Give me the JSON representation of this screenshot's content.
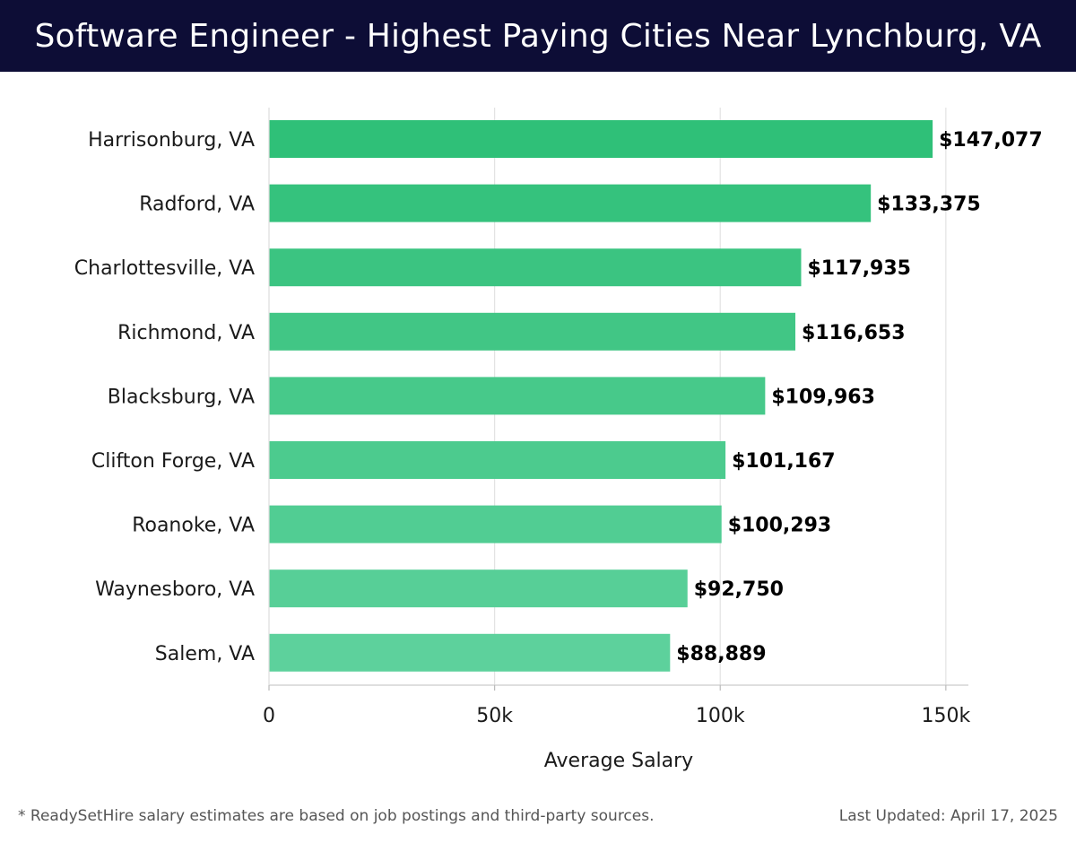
{
  "header": {
    "title": "Software Engineer - Highest Paying Cities Near Lynchburg, VA"
  },
  "footer": {
    "note": "* ReadySetHire salary estimates are based on job postings and third-party sources.",
    "updated": "Last Updated: April 17, 2025"
  },
  "colors": {
    "header_bg": "#0d0d36",
    "bar_top": "#2bbf75",
    "bar_bottom": "#5ad09a"
  },
  "chart_data": {
    "type": "bar",
    "orientation": "horizontal",
    "title": "Software Engineer - Highest Paying Cities Near Lynchburg, VA",
    "xlabel": "Average Salary",
    "ylabel": "",
    "categories": [
      "Harrisonburg, VA",
      "Radford, VA",
      "Charlottesville, VA",
      "Richmond, VA",
      "Blacksburg, VA",
      "Clifton Forge, VA",
      "Roanoke, VA",
      "Waynesboro, VA",
      "Salem, VA"
    ],
    "values": [
      147077,
      133375,
      117935,
      116653,
      109963,
      101167,
      100293,
      92750,
      88889
    ],
    "value_labels": [
      "$147,077",
      "$133,375",
      "$117,935",
      "$116,653",
      "$109,963",
      "$101,167",
      "$100,293",
      "$92,750",
      "$88,889"
    ],
    "xlim": [
      0,
      155000
    ],
    "xticks": [
      0,
      50000,
      100000,
      150000
    ],
    "xtick_labels": [
      "0",
      "50k",
      "100k",
      "150k"
    ],
    "grid": "vertical"
  }
}
